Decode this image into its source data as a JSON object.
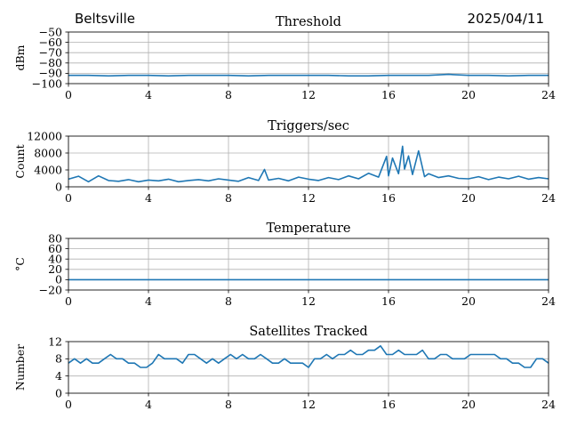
{
  "header": {
    "site": "Beltsville",
    "date": "2025/04/11"
  },
  "chart_data": [
    {
      "type": "line",
      "title": "Threshold",
      "xlabel": "",
      "ylabel": "dBm",
      "xlim": [
        0,
        24
      ],
      "ylim": [
        -100,
        -50
      ],
      "xticks": [
        0,
        4,
        8,
        12,
        16,
        20,
        24
      ],
      "yticks": [
        -100,
        -90,
        -80,
        -70,
        -60,
        -50
      ],
      "grid": true,
      "color": "#1f77b4",
      "series": [
        {
          "x": [
            0,
            1,
            2,
            3,
            4,
            5,
            6,
            7,
            8,
            9,
            10,
            11,
            12,
            13,
            14,
            15,
            16,
            17,
            18,
            19,
            20,
            21,
            22,
            23,
            24
          ],
          "values": [
            -92,
            -92,
            -92.5,
            -92,
            -92,
            -92.5,
            -92,
            -92,
            -92,
            -92.5,
            -92,
            -92,
            -92,
            -92,
            -92.5,
            -92.5,
            -92,
            -92,
            -92,
            -91,
            -92,
            -92,
            -92.5,
            -92,
            -92
          ]
        }
      ]
    },
    {
      "type": "line",
      "title": "Triggers/sec",
      "xlabel": "",
      "ylabel": "Count",
      "xlim": [
        0,
        24
      ],
      "ylim": [
        0,
        12000
      ],
      "xticks": [
        0,
        4,
        8,
        12,
        16,
        20,
        24
      ],
      "yticks": [
        0,
        4000,
        8000,
        12000
      ],
      "grid": true,
      "color": "#1f77b4",
      "series": [
        {
          "x": [
            0,
            0.5,
            1,
            1.5,
            2,
            2.5,
            3,
            3.5,
            4,
            4.5,
            5,
            5.5,
            6,
            6.5,
            7,
            7.5,
            8,
            8.5,
            9,
            9.5,
            9.8,
            10,
            10.5,
            11,
            11.5,
            12,
            12.5,
            13,
            13.5,
            14,
            14.5,
            15,
            15.5,
            15.9,
            16,
            16.2,
            16.5,
            16.7,
            16.8,
            17,
            17.2,
            17.5,
            17.8,
            18,
            18.5,
            19,
            19.5,
            20,
            20.5,
            21,
            21.5,
            22,
            22.5,
            23,
            23.5,
            24
          ],
          "values": [
            1800,
            2500,
            1200,
            2600,
            1500,
            1300,
            1700,
            1200,
            1600,
            1400,
            1800,
            1200,
            1500,
            1700,
            1400,
            1900,
            1600,
            1300,
            2200,
            1500,
            4100,
            1600,
            2000,
            1400,
            2300,
            1800,
            1500,
            2200,
            1700,
            2600,
            1900,
            3200,
            2300,
            7200,
            2600,
            6800,
            3100,
            9600,
            4200,
            7300,
            2900,
            8500,
            2400,
            3100,
            2200,
            2600,
            2000,
            1900,
            2400,
            1700,
            2300,
            1900,
            2500,
            1800,
            2200,
            1900
          ]
        }
      ]
    },
    {
      "type": "line",
      "title": "Temperature",
      "xlabel": "",
      "ylabel": "°C",
      "xlim": [
        0,
        24
      ],
      "ylim": [
        -20,
        80
      ],
      "xticks": [
        0,
        4,
        8,
        12,
        16,
        20,
        24
      ],
      "yticks": [
        -20,
        0,
        20,
        40,
        60,
        80
      ],
      "grid": true,
      "color": "#1f77b4",
      "series": [
        {
          "x": [
            0,
            24
          ],
          "values": [
            0,
            0
          ]
        }
      ]
    },
    {
      "type": "line",
      "title": "Satellites Tracked",
      "xlabel": "",
      "ylabel": "Number",
      "xlim": [
        0,
        24
      ],
      "ylim": [
        0,
        12
      ],
      "xticks": [
        0,
        4,
        8,
        12,
        16,
        20,
        24
      ],
      "yticks": [
        0,
        4,
        8,
        12
      ],
      "grid": true,
      "color": "#1f77b4",
      "series": [
        {
          "x": [
            0,
            0.3,
            0.6,
            0.9,
            1.2,
            1.5,
            1.8,
            2.1,
            2.4,
            2.7,
            3.0,
            3.3,
            3.6,
            3.9,
            4.2,
            4.5,
            4.8,
            5.1,
            5.4,
            5.7,
            6.0,
            6.3,
            6.6,
            6.9,
            7.2,
            7.5,
            7.8,
            8.1,
            8.4,
            8.7,
            9.0,
            9.3,
            9.6,
            9.9,
            10.2,
            10.5,
            10.8,
            11.1,
            11.4,
            11.7,
            12.0,
            12.3,
            12.6,
            12.9,
            13.2,
            13.5,
            13.8,
            14.1,
            14.4,
            14.7,
            15.0,
            15.3,
            15.6,
            15.9,
            16.2,
            16.5,
            16.8,
            17.1,
            17.4,
            17.7,
            18.0,
            18.3,
            18.6,
            18.9,
            19.2,
            19.5,
            19.8,
            20.1,
            20.4,
            20.7,
            21.0,
            21.3,
            21.6,
            21.9,
            22.2,
            22.5,
            22.8,
            23.1,
            23.4,
            23.7,
            24.0
          ],
          "values": [
            7,
            8,
            7,
            8,
            7,
            7,
            8,
            9,
            8,
            8,
            7,
            7,
            6,
            6,
            7,
            9,
            8,
            8,
            8,
            7,
            9,
            9,
            8,
            7,
            8,
            7,
            8,
            9,
            8,
            9,
            8,
            8,
            9,
            8,
            7,
            7,
            8,
            7,
            7,
            7,
            6,
            8,
            8,
            9,
            8,
            9,
            9,
            10,
            9,
            9,
            10,
            10,
            11,
            9,
            9,
            10,
            9,
            9,
            9,
            10,
            8,
            8,
            9,
            9,
            8,
            8,
            8,
            9,
            9,
            9,
            9,
            9,
            8,
            8,
            7,
            7,
            6,
            6,
            8,
            8,
            7
          ]
        }
      ]
    }
  ]
}
